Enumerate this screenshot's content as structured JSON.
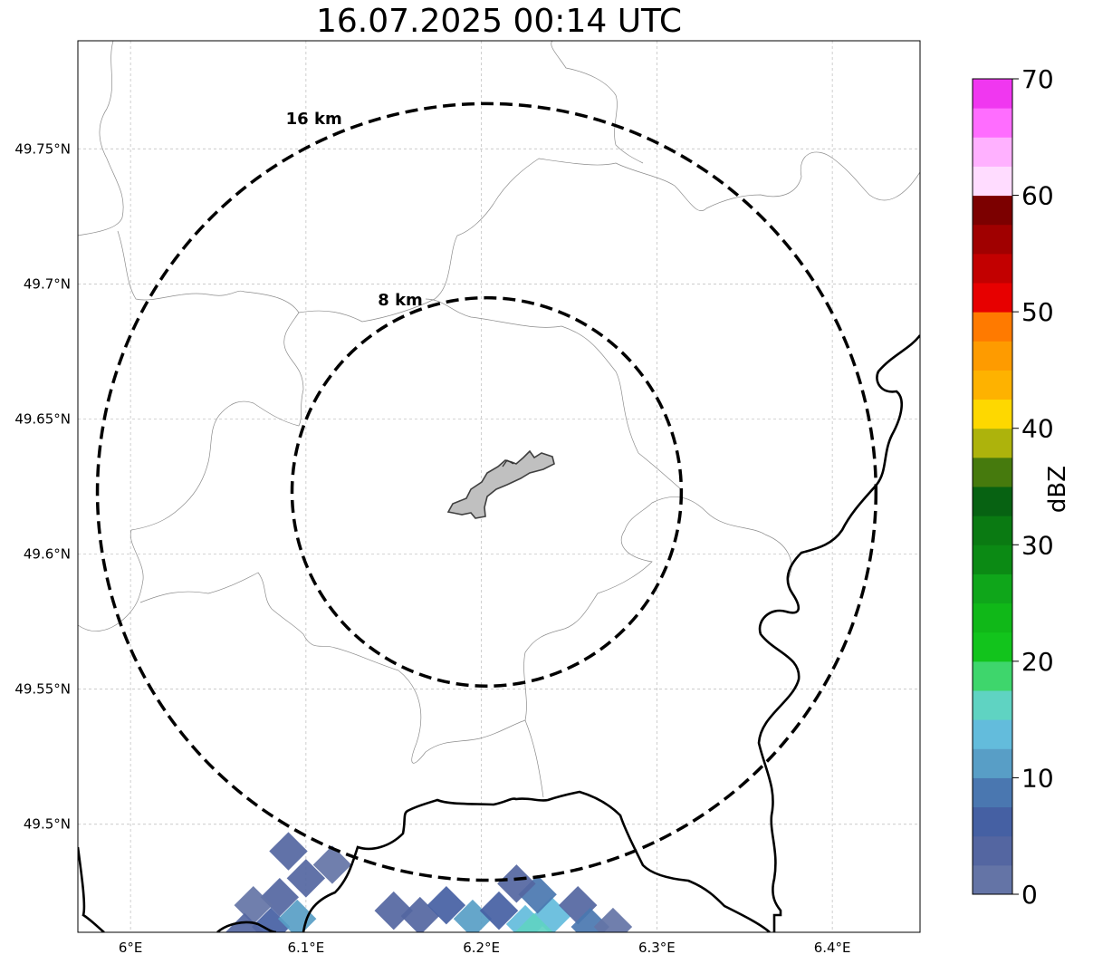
{
  "title": "16.07.2025 00:14 UTC",
  "map": {
    "lon_range": [
      5.97,
      6.45
    ],
    "lat_range": [
      49.46,
      49.79
    ],
    "center": {
      "lon": 6.203,
      "lat": 49.623
    },
    "gridlines": "on",
    "lon_ticks": [
      {
        "value": 6.0,
        "label": "6°E"
      },
      {
        "value": 6.1,
        "label": "6.1°E"
      },
      {
        "value": 6.2,
        "label": "6.2°E"
      },
      {
        "value": 6.3,
        "label": "6.3°E"
      },
      {
        "value": 6.4,
        "label": "6.4°E"
      }
    ],
    "lat_ticks": [
      {
        "value": 49.75,
        "label": "49.75°N"
      },
      {
        "value": 49.7,
        "label": "49.7°N"
      },
      {
        "value": 49.65,
        "label": "49.65°N"
      },
      {
        "value": 49.6,
        "label": "49.6°N"
      },
      {
        "value": 49.55,
        "label": "49.55°N"
      },
      {
        "value": 49.5,
        "label": "49.5°N"
      }
    ],
    "rings": [
      {
        "radius_km": 8,
        "label": "8 km"
      },
      {
        "radius_km": 16,
        "label": "16 km"
      }
    ],
    "colors": {
      "gridline": "#bbbbbb",
      "ring": "#000000",
      "city_fill": "#c0c0c0",
      "border": "#000000"
    }
  },
  "colorbar": {
    "label": "dBZ",
    "min": 0,
    "max": 70,
    "step": 2.5,
    "tick_labels": [
      "0",
      "10",
      "20",
      "30",
      "40",
      "50",
      "60",
      "70"
    ],
    "colors": [
      "#6474a6",
      "#5466a1",
      "#4560a3",
      "#4a77b0",
      "#589ec6",
      "#63bcdc",
      "#5fd3c2",
      "#3ed66c",
      "#12c41c",
      "#10b818",
      "#0fa61a",
      "#0b8a14",
      "#0a7a12",
      "#076212",
      "#467a0d",
      "#adb30c",
      "#fed800",
      "#feb200",
      "#fe9b00",
      "#ff7a00",
      "#e70000",
      "#c20000",
      "#a00000",
      "#7c0000",
      "#ffdcff",
      "#ffb1ff",
      "#ff6dff",
      "#f037f0"
    ]
  },
  "radar_cells": [
    {
      "lon": 6.085,
      "lat": 49.473,
      "dbz": 3
    },
    {
      "lon": 6.1,
      "lat": 49.48,
      "dbz": 4
    },
    {
      "lon": 6.07,
      "lat": 49.47,
      "dbz": 2
    },
    {
      "lon": 6.08,
      "lat": 49.462,
      "dbz": 6
    },
    {
      "lon": 6.095,
      "lat": 49.465,
      "dbz": 12
    },
    {
      "lon": 6.065,
      "lat": 49.46,
      "dbz": 3
    },
    {
      "lon": 6.115,
      "lat": 49.485,
      "dbz": 2
    },
    {
      "lon": 6.09,
      "lat": 49.49,
      "dbz": 3
    },
    {
      "lon": 6.165,
      "lat": 49.466,
      "dbz": 3
    },
    {
      "lon": 6.18,
      "lat": 49.47,
      "dbz": 5
    },
    {
      "lon": 6.195,
      "lat": 49.465,
      "dbz": 10
    },
    {
      "lon": 6.21,
      "lat": 49.468,
      "dbz": 6
    },
    {
      "lon": 6.225,
      "lat": 49.463,
      "dbz": 13
    },
    {
      "lon": 6.24,
      "lat": 49.466,
      "dbz": 14
    },
    {
      "lon": 6.232,
      "lat": 49.474,
      "dbz": 8
    },
    {
      "lon": 6.22,
      "lat": 49.478,
      "dbz": 4
    },
    {
      "lon": 6.255,
      "lat": 49.47,
      "dbz": 3
    },
    {
      "lon": 6.262,
      "lat": 49.462,
      "dbz": 9
    },
    {
      "lon": 6.275,
      "lat": 49.462,
      "dbz": 2
    },
    {
      "lon": 6.15,
      "lat": 49.468,
      "dbz": 3
    },
    {
      "lon": 6.23,
      "lat": 49.46,
      "dbz": 17
    }
  ]
}
